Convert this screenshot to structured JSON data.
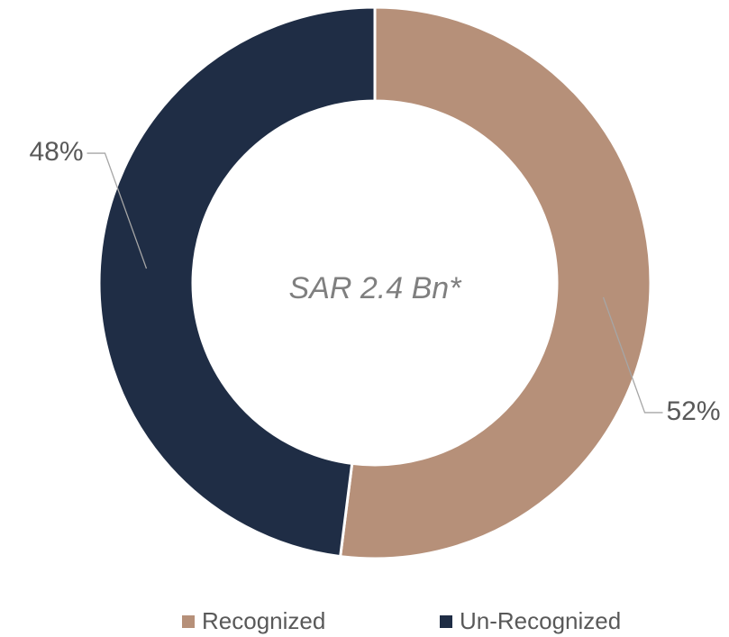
{
  "chart_data": {
    "type": "donut",
    "center_text": "SAR 2.4 Bn*",
    "categories": [
      "Recognized",
      "Un-Recognized"
    ],
    "values": [
      52,
      48
    ],
    "value_labels": [
      "52%",
      "48%"
    ],
    "colors": [
      "#b69079",
      "#1f2d45"
    ],
    "legend": "bottom"
  }
}
